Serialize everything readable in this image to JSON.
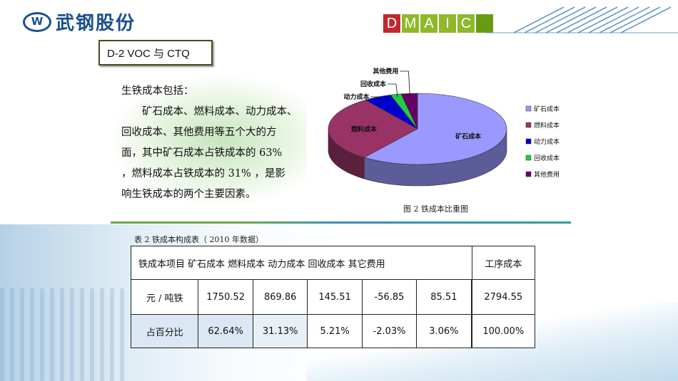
{
  "brand": {
    "logo_text": "武钢股份",
    "dmaic_letters": [
      "D",
      "M",
      "A",
      "I",
      "C"
    ]
  },
  "section_label": "D-2 VOC 与 CTQ",
  "paragraph": {
    "heading": "生铁成本包括：",
    "body": "矿石成本、燃料成本、动力成本、回收成本、其他费用等五个大的方面，其中矿石成本占铁成本的 63% ，燃料成本占铁成本的 31% ，是影响生铁成本的两个主要因素。",
    "lines": [
      "矿石成本、燃料成本、动力成本、",
      "回收成本、其他费用等五个大的方",
      "面，其中矿石成本占铁成本的 63%",
      "，燃料成本占铁成本的 31% ，是影",
      "响生铁成本的两个主要因素。"
    ]
  },
  "chart_data": {
    "type": "pie",
    "title": "",
    "caption": "图 2  铁成本比重图",
    "categories": [
      "矿石成本",
      "燃料成本",
      "动力成本",
      "回收成本",
      "其他费用"
    ],
    "values": [
      62.64,
      31.13,
      5.21,
      2.03,
      3.06
    ],
    "colors": [
      "#9999ff",
      "#993366",
      "#0000cc",
      "#22cc44",
      "#660066"
    ],
    "slice_labels": [
      "矿石成本",
      "燃料成本",
      "动力成本",
      "回收成本",
      "其他费用"
    ],
    "legend": [
      "矿石成本",
      "燃料成本",
      "动力成本",
      "回收成本",
      "其他费用"
    ],
    "legend_position": "right",
    "style": "3d"
  },
  "table": {
    "caption": "表 2  铁成本构成表（ 2010 年数据）",
    "header_text": "铁成本项目  矿石成本  燃料成本  动力成本  回收成本  其它费用",
    "header_last": "工序成本",
    "rows": [
      {
        "label": "元 / 吨铁",
        "values": [
          "1750.52",
          "869.86",
          "145.51",
          "-56.85",
          "85.51",
          "2794.55"
        ]
      },
      {
        "label": "占百分比",
        "values": [
          "62.64%",
          "31.13%",
          "5.21%",
          "-2.03%",
          "3.06%",
          "100.00%"
        ]
      }
    ]
  }
}
